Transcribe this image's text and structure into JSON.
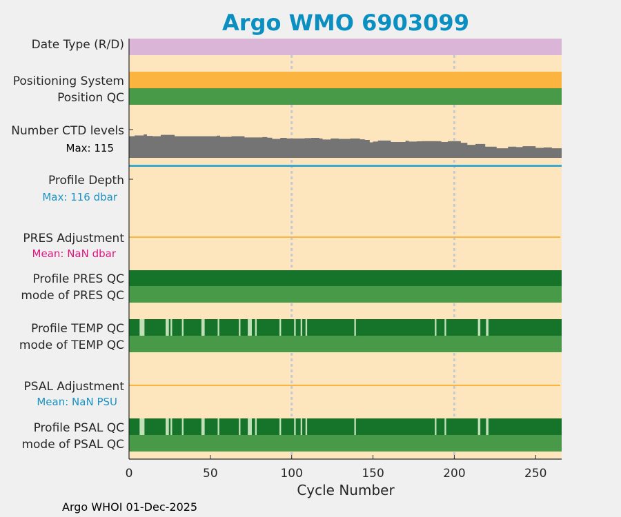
{
  "chart_data": {
    "type": "table",
    "title": "Argo WMO 6903099",
    "xlabel": "Cycle Number",
    "xlim": [
      0,
      266
    ],
    "xticks": [
      0,
      50,
      100,
      150,
      200,
      250
    ],
    "reference_lines": [
      100,
      200
    ],
    "footer": "Argo WHOI 01-Dec-2025",
    "rows": {
      "date_type": {
        "label": "Date Type (R/D)",
        "color": "#dbb5d8"
      },
      "positioning_system": {
        "label": "Positioning System",
        "color": "#fcb441"
      },
      "position_qc": {
        "label": "Position QC",
        "color": "#489a48"
      },
      "ctd_levels": {
        "label": "Number CTD levels",
        "sub": "Max: 115",
        "max": 115,
        "color": "#747474",
        "steps": [
          [
            0,
            106
          ],
          [
            3.4,
            110
          ],
          [
            9,
            115
          ],
          [
            11,
            108
          ],
          [
            14.5,
            106
          ],
          [
            19.5,
            113
          ],
          [
            28,
            106
          ],
          [
            54,
            109
          ],
          [
            56,
            103
          ],
          [
            63,
            106
          ],
          [
            71,
            100
          ],
          [
            82,
            102
          ],
          [
            85,
            99
          ],
          [
            88,
            93
          ],
          [
            93,
            98
          ],
          [
            97,
            95
          ],
          [
            108,
            97
          ],
          [
            112,
            98
          ],
          [
            117,
            95
          ],
          [
            119,
            90
          ],
          [
            124,
            95
          ],
          [
            129,
            93
          ],
          [
            136,
            95
          ],
          [
            142,
            91
          ],
          [
            145,
            88
          ],
          [
            148,
            76
          ],
          [
            150,
            80
          ],
          [
            153,
            85
          ],
          [
            161,
            78
          ],
          [
            170,
            84
          ],
          [
            172,
            80
          ],
          [
            177,
            81
          ],
          [
            180,
            82
          ],
          [
            192,
            78
          ],
          [
            196,
            82
          ],
          [
            204,
            74
          ],
          [
            208,
            64
          ],
          [
            213,
            68
          ],
          [
            219,
            55
          ],
          [
            226,
            47
          ],
          [
            233,
            55
          ],
          [
            238,
            53
          ],
          [
            242,
            57
          ],
          [
            250,
            49
          ],
          [
            255,
            51
          ],
          [
            260,
            47
          ]
        ]
      },
      "profile_depth": {
        "label": "Profile Depth",
        "sub": "Max:  116 dbar",
        "max_dbar": 116,
        "color": "#3ba8cc"
      },
      "pres_adjustment": {
        "label": "PRES Adjustment",
        "sub": "Mean:  NaN dbar",
        "sub_color": "#e0147e",
        "line_color": "#fcb441"
      },
      "profile_pres_qc": {
        "label": "Profile PRES QC",
        "color": "#15742a",
        "bad": []
      },
      "mode_pres_qc": {
        "label": "mode of PRES QC",
        "color": "#489a48"
      },
      "profile_temp_qc": {
        "label": "Profile TEMP QC",
        "color": "#15742a",
        "bad_color": "#c2dfb8",
        "bad": [
          [
            6.5,
            9.5
          ],
          [
            22.5,
            24.5
          ],
          [
            25.5,
            26.5
          ],
          [
            32.5,
            33.5
          ],
          [
            44.5,
            46.5
          ],
          [
            54.5,
            55.5
          ],
          [
            67.5,
            68.5
          ],
          [
            73,
            75.5
          ],
          [
            77.5,
            78.5
          ],
          [
            92.5,
            93.5
          ],
          [
            101.5,
            102.5
          ],
          [
            105.5,
            106.5
          ],
          [
            108.5,
            109.5
          ],
          [
            138.5,
            139.5
          ],
          [
            188,
            189
          ],
          [
            194,
            195
          ],
          [
            214.5,
            216
          ],
          [
            219.5,
            221
          ]
        ]
      },
      "mode_temp_qc": {
        "label": "mode of TEMP QC",
        "color": "#489a48"
      },
      "psal_adjustment": {
        "label": "PSAL Adjustment",
        "sub": "Mean:  NaN PSU",
        "sub_color": "#1a92c2",
        "line_color": "#fcb441"
      },
      "profile_psal_qc": {
        "label": "Profile PSAL QC",
        "color": "#15742a",
        "bad_color": "#c2dfb8",
        "bad": [
          [
            6.5,
            9.5
          ],
          [
            22.5,
            24.5
          ],
          [
            25.5,
            26.5
          ],
          [
            32.5,
            33.5
          ],
          [
            44.5,
            46.5
          ],
          [
            54.5,
            55.5
          ],
          [
            67.5,
            68.5
          ],
          [
            73,
            75.5
          ],
          [
            77.5,
            78.5
          ],
          [
            92.5,
            93.5
          ],
          [
            101.5,
            102.5
          ],
          [
            105.5,
            106.5
          ],
          [
            108.5,
            109.5
          ],
          [
            138.5,
            139.5
          ],
          [
            188,
            189
          ],
          [
            194,
            195
          ],
          [
            214.5,
            216
          ],
          [
            219.5,
            221
          ]
        ]
      },
      "mode_psal_qc": {
        "label": "mode of PSAL QC",
        "color": "#489a48"
      }
    },
    "colors": {
      "title": "#0a8fc0",
      "plot_bg": "#fde6bd",
      "ref_line": "#c8c8d2",
      "profile_depth_sub": "#1a92c2"
    }
  }
}
